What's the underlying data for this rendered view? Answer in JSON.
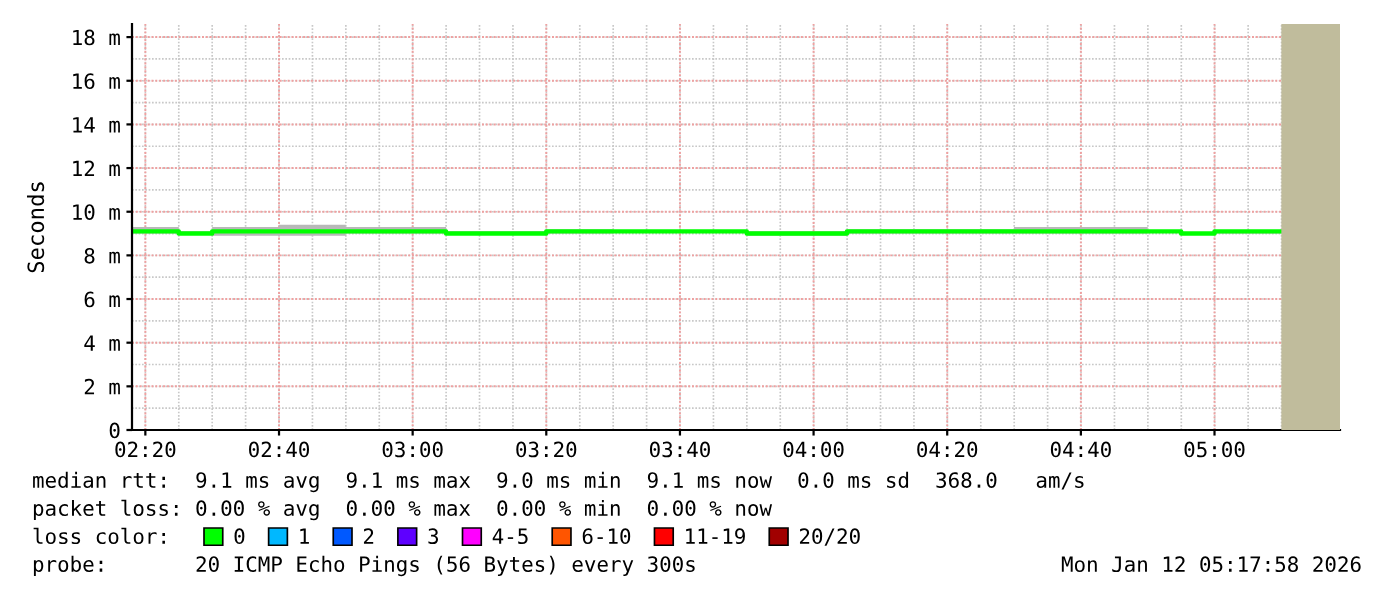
{
  "chart_data": {
    "type": "step",
    "ylabel": "Seconds",
    "x": [
      2.3,
      2.4167,
      2.5,
      2.6667,
      2.8333,
      3.0833,
      3.3333,
      3.5,
      3.8333,
      4.0833,
      4.5,
      4.8333,
      4.9167,
      5.0,
      5.1667
    ],
    "series": [
      {
        "name": "0",
        "color": "#00ff00",
        "values": [
          9.1,
          9.0,
          9.1,
          9.1,
          9.1,
          9.0,
          9.1,
          9.1,
          9.0,
          9.1,
          9.1,
          9.1,
          9.0,
          9.1,
          9.1
        ],
        "lower": [
          9.0,
          9.0,
          8.9,
          8.9,
          9.0,
          9.0,
          9.0,
          9.1,
          8.9,
          9.0,
          9.0,
          9.1,
          9.0,
          9.0,
          9.0
        ],
        "upper": [
          9.3,
          9.1,
          9.3,
          9.4,
          9.3,
          9.1,
          9.2,
          9.1,
          9.1,
          9.2,
          9.3,
          9.1,
          9.0,
          9.1,
          9.1
        ]
      },
      {
        "name": "1",
        "color": "#00b8ff",
        "values": [
          null,
          null,
          null,
          null,
          null,
          null,
          null,
          null,
          null,
          null,
          null,
          null,
          null,
          null,
          null
        ]
      },
      {
        "name": "2",
        "color": "#0059ff",
        "values": [
          null,
          null,
          null,
          null,
          null,
          null,
          null,
          null,
          null,
          null,
          null,
          null,
          null,
          null,
          null
        ]
      },
      {
        "name": "3",
        "color": "#5e00ff",
        "values": [
          null,
          null,
          null,
          null,
          null,
          null,
          null,
          null,
          null,
          null,
          null,
          null,
          null,
          null,
          null
        ]
      },
      {
        "name": "4-5",
        "color": "#ff00ff",
        "values": [
          null,
          null,
          null,
          null,
          null,
          null,
          null,
          null,
          null,
          null,
          null,
          null,
          null,
          null,
          null
        ]
      },
      {
        "name": "6-10",
        "color": "#ff5500",
        "values": [
          null,
          null,
          null,
          null,
          null,
          null,
          null,
          null,
          null,
          null,
          null,
          null,
          null,
          null,
          null
        ]
      },
      {
        "name": "11-19",
        "color": "#ff0000",
        "values": [
          null,
          null,
          null,
          null,
          null,
          null,
          null,
          null,
          null,
          null,
          null,
          null,
          null,
          null,
          null
        ]
      },
      {
        "name": "20/20",
        "color": "#a10000",
        "values": [
          null,
          null,
          null,
          null,
          null,
          null,
          null,
          null,
          null,
          null,
          null,
          null,
          null,
          null,
          null
        ]
      }
    ],
    "legend_title": "loss color:",
    "legend": "bottom",
    "xlim": [
      2.3,
      5.313
    ],
    "xticks": [
      {
        "value": 2.3333,
        "label": "02:20"
      },
      {
        "value": 2.6667,
        "label": "02:40"
      },
      {
        "value": 3.0,
        "label": "03:00"
      },
      {
        "value": 3.3333,
        "label": "03:20"
      },
      {
        "value": 3.6667,
        "label": "03:40"
      },
      {
        "value": 4.0,
        "label": "04:00"
      },
      {
        "value": 4.3333,
        "label": "04:20"
      },
      {
        "value": 4.6667,
        "label": "04:40"
      },
      {
        "value": 5.0,
        "label": "05:00"
      }
    ],
    "ylim": [
      0,
      18.6
    ],
    "yticks": [
      0,
      {
        "value": 2,
        "label": "2 m"
      },
      {
        "value": 4,
        "label": "4 m"
      },
      {
        "value": 6,
        "label": "6 m"
      },
      {
        "value": 8,
        "label": "8 m"
      },
      {
        "value": 10,
        "label": "10 m"
      },
      {
        "value": 12,
        "label": "12 m"
      },
      {
        "value": 14,
        "label": "14 m"
      },
      {
        "value": 16,
        "label": "16 m"
      },
      {
        "value": 18,
        "label": "18 m"
      }
    ],
    "grid": true,
    "bands": [
      {
        "axis": "x",
        "from": 5.1667,
        "to": 5.313,
        "color": "#c0bc9c"
      }
    ],
    "annotations": [
      "median rtt:  9.1 ms avg  9.1 ms max  9.0 ms min  9.1 ms now  0.0 ms sd  368.0   am/s",
      "packet loss: 0.00 % avg  0.00 % max  0.00 % min  0.00 % now",
      "probe:       20 ICMP Echo Pings (56 Bytes) every 300s",
      "Mon Jan 12 05:17:58 2026"
    ]
  }
}
